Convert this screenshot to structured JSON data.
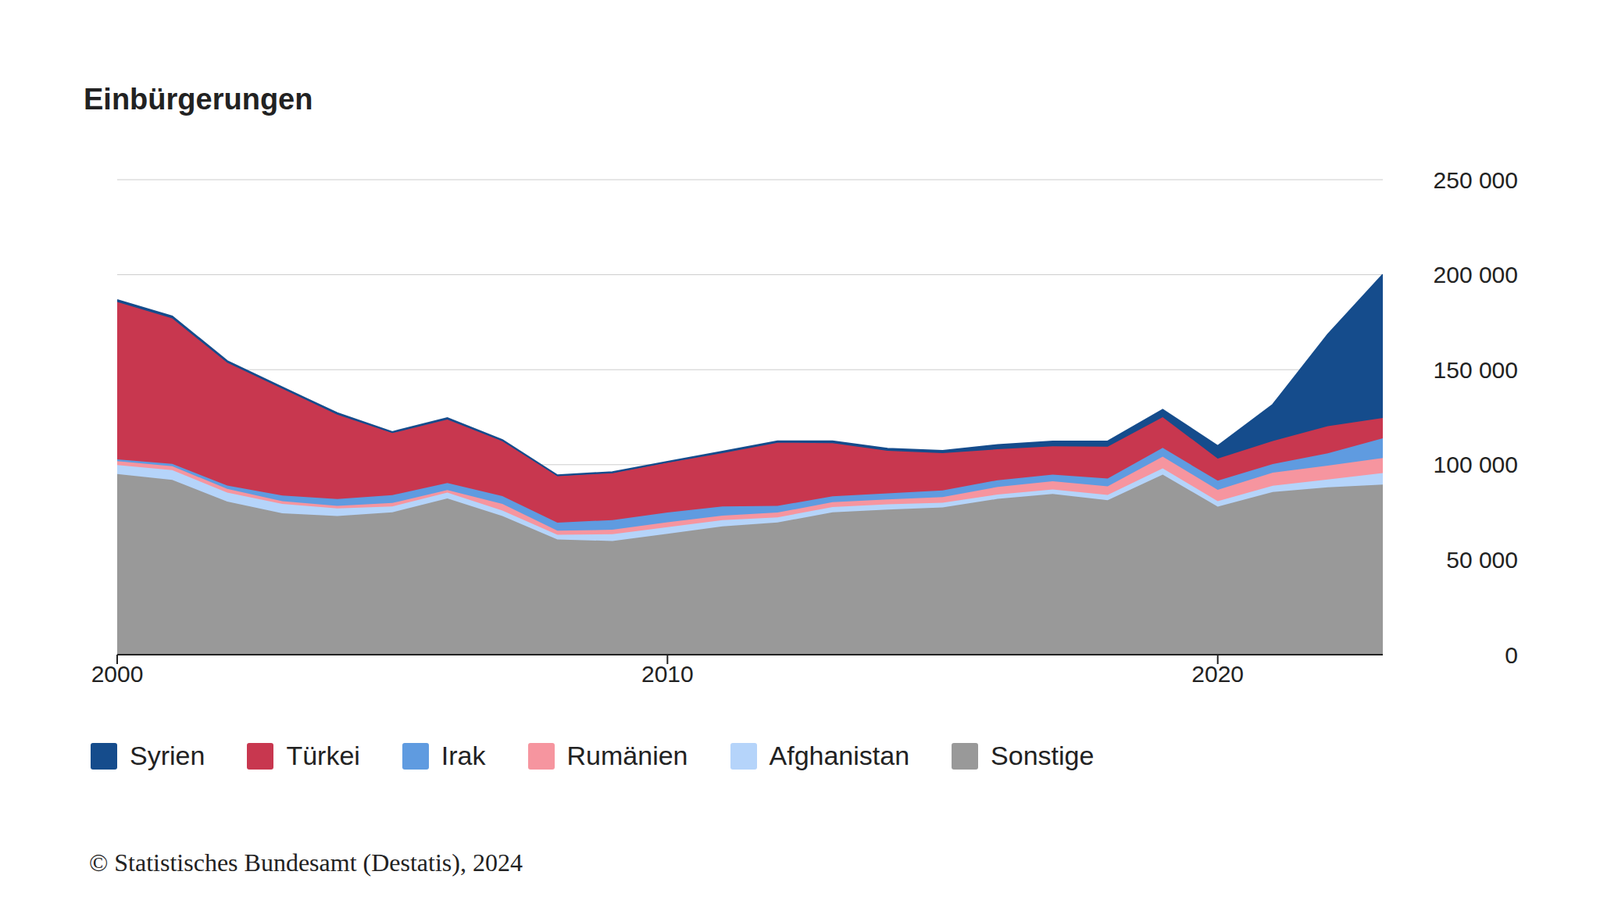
{
  "chart_data": {
    "type": "area",
    "title": "Einbürgerungen",
    "source": "© Statistisches Bundesamt (Destatis), 2024",
    "stacked": true,
    "grid": true,
    "legend": "bottom",
    "x": [
      2000,
      2001,
      2002,
      2003,
      2004,
      2005,
      2006,
      2007,
      2008,
      2009,
      2010,
      2011,
      2012,
      2013,
      2014,
      2015,
      2016,
      2017,
      2018,
      2019,
      2020,
      2021,
      2022,
      2023
    ],
    "xlim": [
      2000,
      2023
    ],
    "xticks": [
      2000,
      2010,
      2020
    ],
    "ylim": [
      0,
      250000
    ],
    "yticks": [
      0,
      {
        "value": 50000,
        "label": "50 000"
      },
      {
        "value": 100000,
        "label": "100 000"
      },
      {
        "value": 150000,
        "label": "150 000"
      },
      {
        "value": 200000,
        "label": "200 000"
      },
      {
        "value": 250000,
        "label": "250 000"
      }
    ],
    "series": [
      {
        "name": "Syrien",
        "color": "#154c8c",
        "values": [
          1000,
          1100,
          900,
          700,
          800,
          600,
          800,
          700,
          500,
          600,
          500,
          800,
          800,
          1000,
          1100,
          1200,
          2263,
          2479,
          2880,
          3855,
          6700,
          19095,
          48300,
          75485
        ]
      },
      {
        "name": "Türkei",
        "color": "#c8374f",
        "values": [
          82861,
          76573,
          64631,
          56244,
          44465,
          32661,
          33388,
          28861,
          24449,
          24647,
          26192,
          28103,
          33246,
          27970,
          22463,
          19695,
          16290,
          14984,
          16700,
          16235,
          11630,
          12150,
          14235,
          10735
        ]
      },
      {
        "name": "Irak",
        "color": "#5f9be0",
        "values": [
          984,
          1264,
          1721,
          2999,
          3564,
          4136,
          3693,
          4102,
          4229,
          5136,
          5228,
          4790,
          3510,
          3150,
          3172,
          3450,
          3546,
          3480,
          4110,
          4550,
          4830,
          4525,
          6500,
          10350
        ]
      },
      {
        "name": "Rumänien",
        "color": "#f6959f",
        "values": [
          2008,
          2026,
          1974,
          1394,
          1309,
          1789,
          1379,
          3502,
          2137,
          2357,
          2523,
          2399,
          2523,
          2504,
          2566,
          3000,
          4000,
          4256,
          4550,
          6190,
          5910,
          6875,
          7300,
          7900
        ]
      },
      {
        "name": "Afghanistan",
        "color": "#b5d4fa",
        "values": [
          4773,
          5111,
          4750,
          4948,
          4077,
          3133,
          3063,
          2831,
          2512,
          3549,
          3520,
          3305,
          2711,
          2754,
          2728,
          2451,
          2289,
          2390,
          2750,
          3320,
          2900,
          3360,
          4100,
          6135
        ]
      },
      {
        "name": "Sonstige",
        "color": "#999999",
        "values": [
          95062,
          92024,
          80571,
          74446,
          72938,
          74922,
          82243,
          73034,
          60643,
          59833,
          63607,
          67500,
          69558,
          74975,
          76393,
          77521,
          81995,
          84622,
          81350,
          94755,
          77910,
          85590,
          88110,
          89490
        ]
      }
    ]
  }
}
